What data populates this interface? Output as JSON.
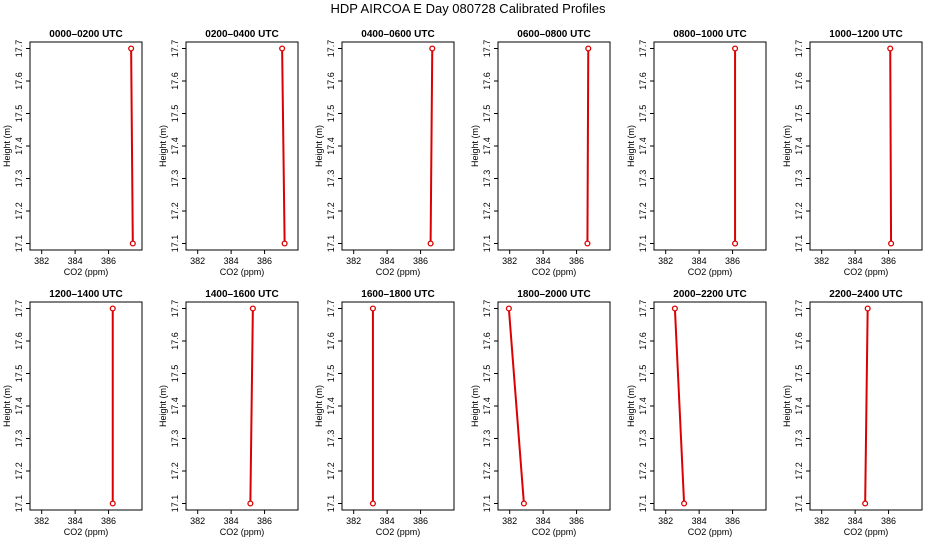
{
  "title": "HDP AIRCOA E  Day 080728  Calibrated Profiles",
  "chart_data": {
    "type": "line",
    "xlabel": "CO2 (ppm)",
    "ylabel": "Height (m)",
    "xlim": [
      381.3,
      388.0
    ],
    "ylim": [
      17.08,
      17.72
    ],
    "xticks": [
      382,
      384,
      386
    ],
    "yticks": [
      17.1,
      17.2,
      17.3,
      17.4,
      17.5,
      17.6,
      17.7
    ],
    "series_color": "#dd0000",
    "panels": [
      {
        "title": "0000–0200 UTC",
        "profile": [
          {
            "co2": 387.45,
            "height": 17.1
          },
          {
            "co2": 387.35,
            "height": 17.7
          }
        ]
      },
      {
        "title": "0200–0400 UTC",
        "profile": [
          {
            "co2": 387.2,
            "height": 17.1
          },
          {
            "co2": 387.05,
            "height": 17.7
          }
        ]
      },
      {
        "title": "0400–0600 UTC",
        "profile": [
          {
            "co2": 386.6,
            "height": 17.1
          },
          {
            "co2": 386.7,
            "height": 17.7
          }
        ]
      },
      {
        "title": "0600–0800 UTC",
        "profile": [
          {
            "co2": 386.65,
            "height": 17.1
          },
          {
            "co2": 386.7,
            "height": 17.7
          }
        ]
      },
      {
        "title": "0800–1000 UTC",
        "profile": [
          {
            "co2": 386.15,
            "height": 17.1
          },
          {
            "co2": 386.15,
            "height": 17.7
          }
        ]
      },
      {
        "title": "1000–1200 UTC",
        "profile": [
          {
            "co2": 386.15,
            "height": 17.1
          },
          {
            "co2": 386.1,
            "height": 17.7
          }
        ]
      },
      {
        "title": "1200–1400 UTC",
        "profile": [
          {
            "co2": 386.25,
            "height": 17.1
          },
          {
            "co2": 386.25,
            "height": 17.7
          }
        ]
      },
      {
        "title": "1400–1600 UTC",
        "profile": [
          {
            "co2": 385.15,
            "height": 17.1
          },
          {
            "co2": 385.3,
            "height": 17.7
          }
        ]
      },
      {
        "title": "1600–1800 UTC",
        "profile": [
          {
            "co2": 383.15,
            "height": 17.1
          },
          {
            "co2": 383.15,
            "height": 17.7
          }
        ]
      },
      {
        "title": "1800–2000 UTC",
        "profile": [
          {
            "co2": 382.85,
            "height": 17.1
          },
          {
            "co2": 381.95,
            "height": 17.7
          }
        ]
      },
      {
        "title": "2000–2200 UTC",
        "profile": [
          {
            "co2": 383.1,
            "height": 17.1
          },
          {
            "co2": 382.55,
            "height": 17.7
          }
        ]
      },
      {
        "title": "2200–2400 UTC",
        "profile": [
          {
            "co2": 384.6,
            "height": 17.1
          },
          {
            "co2": 384.75,
            "height": 17.7
          }
        ]
      }
    ]
  }
}
